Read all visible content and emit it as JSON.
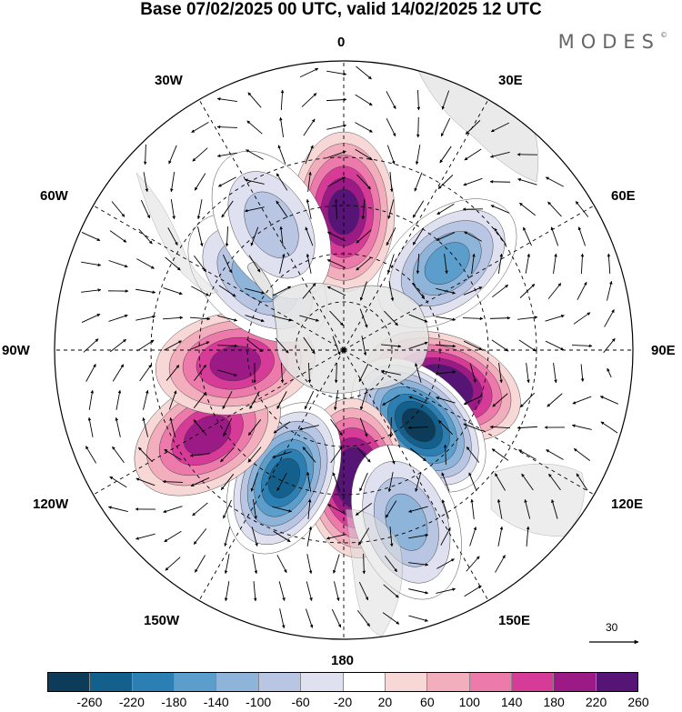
{
  "header": {
    "title": "Base 07/02/2025 00 UTC, valid 14/02/2025 12 UTC",
    "brand": "MODES",
    "brand_mark": "©"
  },
  "map": {
    "projection": "south polar stereographic",
    "longitude_labels": [
      "0",
      "30E",
      "60E",
      "90E",
      "120E",
      "150E",
      "180",
      "150W",
      "120W",
      "90W",
      "60W",
      "30W"
    ],
    "vector_reference": "30",
    "anomalies": [
      {
        "lon": 0,
        "lat": -47,
        "value": 200,
        "sign": "positive"
      },
      {
        "lon": 50,
        "lat": -48,
        "value": -170,
        "sign": "negative"
      },
      {
        "lon": 110,
        "lat": -57,
        "value": 250,
        "sign": "positive"
      },
      {
        "lon": 135,
        "lat": -57,
        "value": -280,
        "sign": "negative"
      },
      {
        "lon": 175,
        "lat": -50,
        "value": 270,
        "sign": "positive"
      },
      {
        "lon": -155,
        "lat": -46,
        "value": -240,
        "sign": "negative"
      },
      {
        "lon": -122,
        "lat": -40,
        "value": 160,
        "sign": "positive"
      },
      {
        "lon": -97,
        "lat": -56,
        "value": 170,
        "sign": "positive"
      },
      {
        "lon": -50,
        "lat": -55,
        "value": -130,
        "sign": "negative"
      },
      {
        "lon": -30,
        "lat": -45,
        "value": -110,
        "sign": "negative"
      },
      {
        "lon": 160,
        "lat": -33,
        "value": -140,
        "sign": "negative"
      }
    ]
  },
  "colorbar": {
    "ticks": [
      "-260",
      "-220",
      "-180",
      "-140",
      "-100",
      "-60",
      "-20",
      "20",
      "60",
      "100",
      "140",
      "180",
      "220",
      "260"
    ],
    "colors": [
      "#0d3c5b",
      "#14608c",
      "#2c7fb3",
      "#5c9ecb",
      "#8fb4d9",
      "#b8c6e3",
      "#dfe1f0",
      "#ffffff",
      "#f8d7d7",
      "#f3aebd",
      "#ec7bab",
      "#d63b97",
      "#9c1a86",
      "#561576"
    ]
  }
}
